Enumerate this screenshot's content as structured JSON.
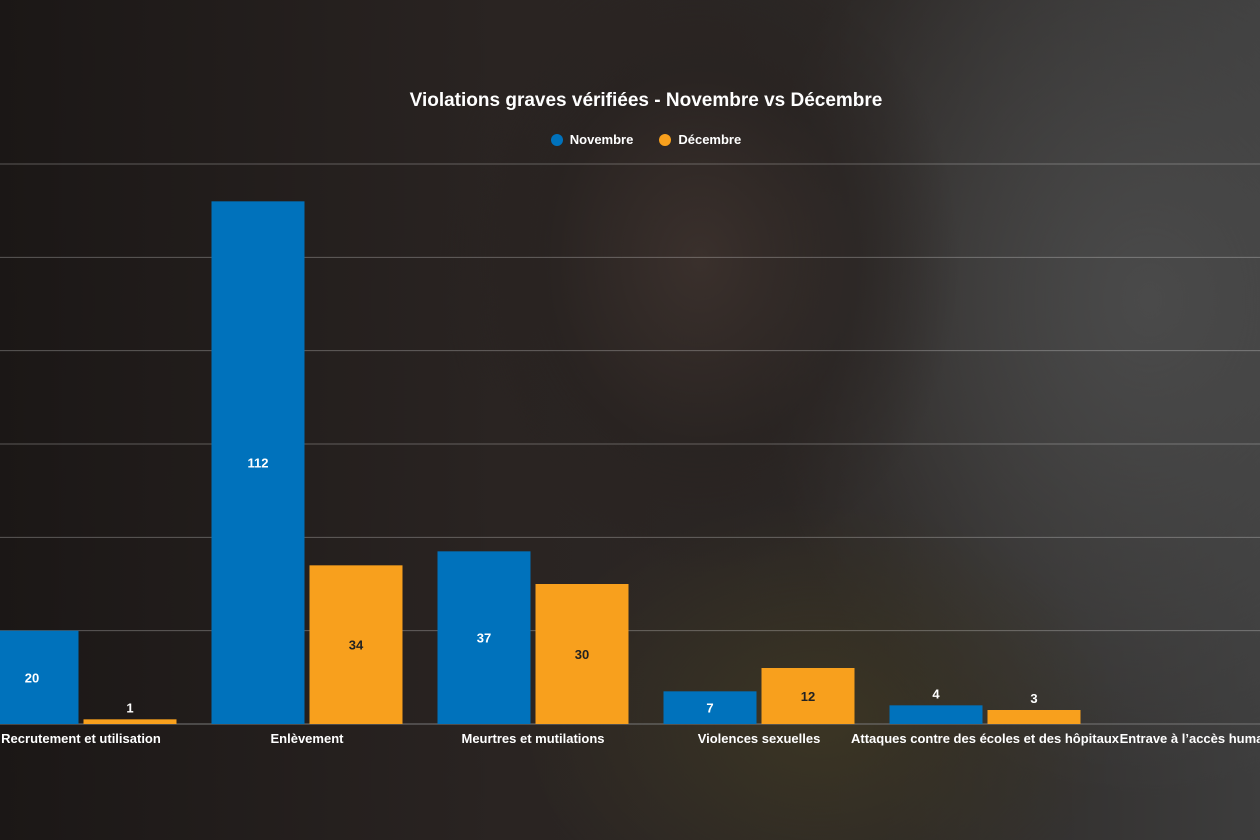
{
  "chart_data": {
    "type": "bar",
    "title": "Violations graves vérifiées - Novembre vs Décembre",
    "categories": [
      "Recrutement et utilisation",
      "Enlèvement",
      "Meurtres et mutilations",
      "Violences sexuelles",
      "Attaques contre des écoles et des hôpitaux",
      "Entrave à l’accès humanitaire"
    ],
    "series": [
      {
        "name": "Novembre",
        "color": "#0072bc",
        "values": [
          20,
          112,
          37,
          7,
          4,
          null
        ]
      },
      {
        "name": "Décembre",
        "color": "#f8a01d",
        "values": [
          1,
          34,
          30,
          12,
          3,
          null
        ]
      }
    ],
    "ylim": [
      0,
      120
    ],
    "grid": true,
    "legend": "top-center",
    "xlabel": "",
    "ylabel": ""
  }
}
